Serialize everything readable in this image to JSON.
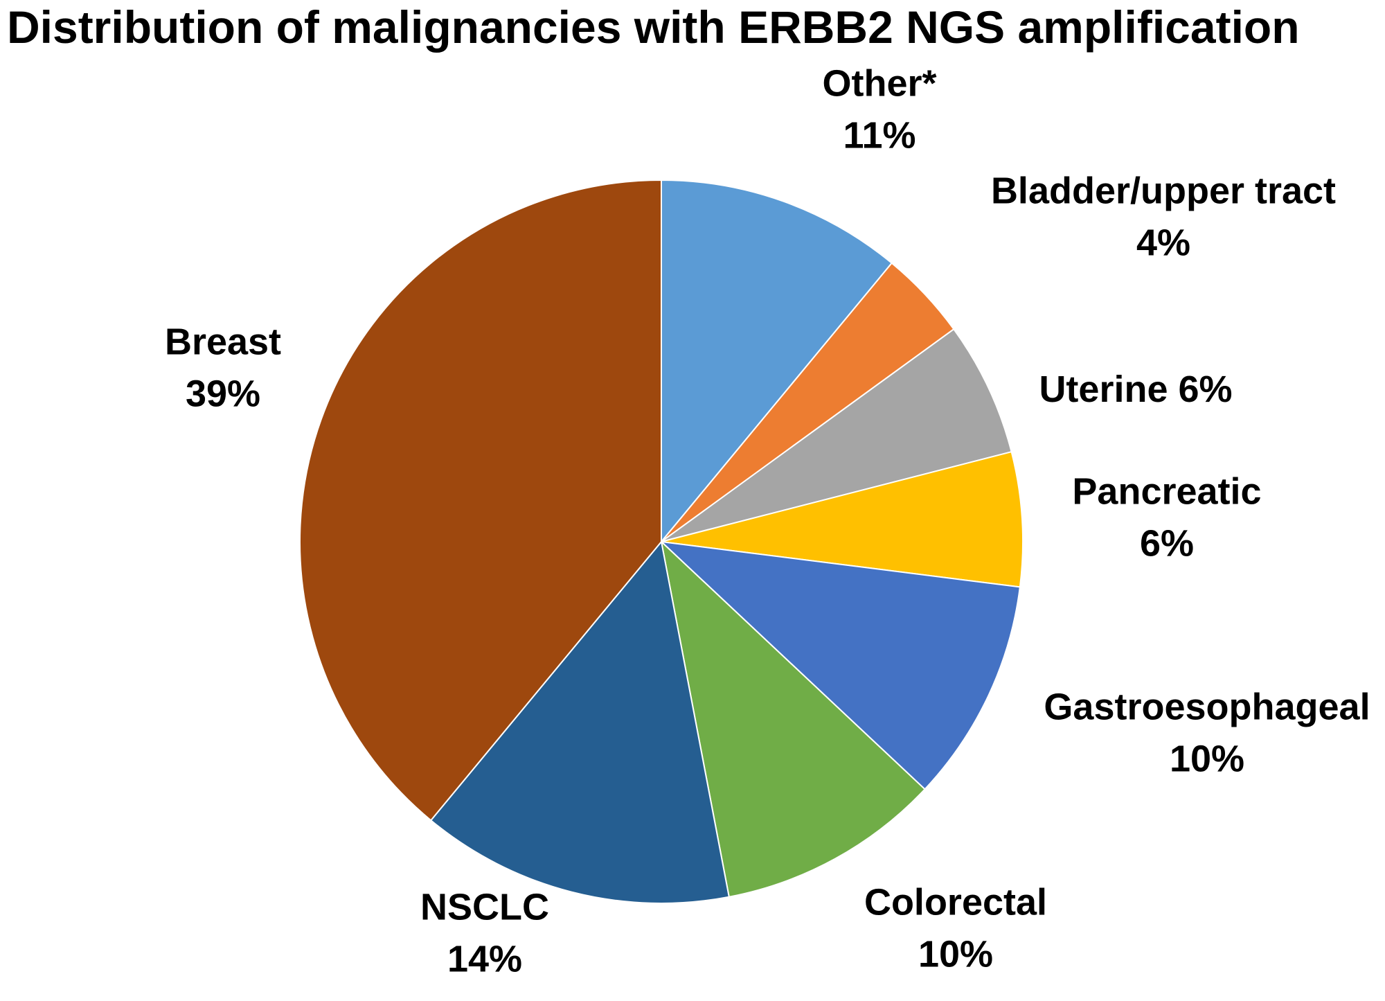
{
  "chart_data": {
    "type": "pie",
    "title": "Distribution of malignancies with ERBB2 NGS amplification",
    "start": "12 o'clock",
    "direction": "clockwise",
    "slices": [
      {
        "name": "Other*",
        "value": 11,
        "label_lines": [
          "Other*",
          "11%"
        ],
        "color": "#5B9BD5"
      },
      {
        "name": "Bladder/upper tract",
        "value": 4,
        "label_lines": [
          "Bladder/upper tract",
          "4%"
        ],
        "color": "#ED7D31"
      },
      {
        "name": "Uterine",
        "value": 6,
        "label_lines": [
          "Uterine 6%"
        ],
        "color": "#A5A5A5"
      },
      {
        "name": "Pancreatic",
        "value": 6,
        "label_lines": [
          "Pancreatic",
          "6%"
        ],
        "color": "#FFC000"
      },
      {
        "name": "Gastroesophageal",
        "value": 10,
        "label_lines": [
          "Gastroesophageal",
          "10%"
        ],
        "color": "#4472C4"
      },
      {
        "name": "Colorectal",
        "value": 10,
        "label_lines": [
          "Colorectal",
          "10%"
        ],
        "color": "#70AD47"
      },
      {
        "name": "NSCLC",
        "value": 14,
        "label_lines": [
          "NSCLC",
          "14%"
        ],
        "color": "#255E91"
      },
      {
        "name": "Breast",
        "value": 39,
        "label_lines": [
          "Breast",
          "39%"
        ],
        "color": "#9E480E"
      }
    ]
  }
}
